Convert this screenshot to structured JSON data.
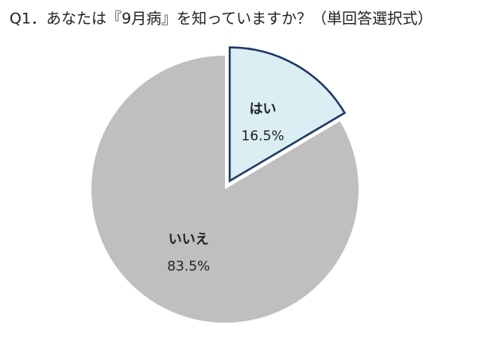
{
  "chart_data": {
    "type": "pie",
    "title": "Q1．あなたは『9月病』を知っていますか？（単回答選択式）",
    "categories": [
      "はい",
      "いいえ"
    ],
    "values": [
      16.5,
      83.5
    ],
    "value_labels": [
      "16.5%",
      "83.5%"
    ],
    "colors": [
      "#daeef3",
      "#bfbfbf"
    ],
    "exploded": [
      true,
      false
    ]
  }
}
